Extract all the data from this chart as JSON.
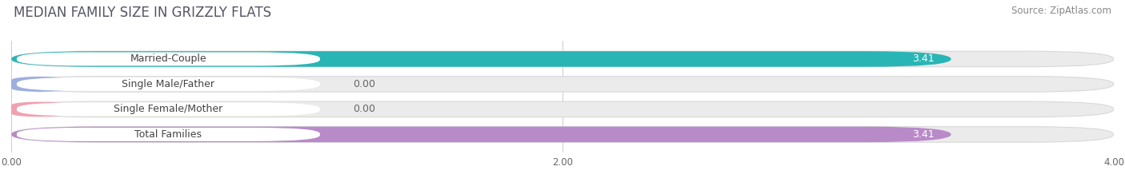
{
  "title": "MEDIAN FAMILY SIZE IN GRIZZLY FLATS",
  "source": "Source: ZipAtlas.com",
  "categories": [
    "Married-Couple",
    "Single Male/Father",
    "Single Female/Mother",
    "Total Families"
  ],
  "values": [
    3.41,
    0.0,
    0.0,
    3.41
  ],
  "bar_colors": [
    "#2ab5b5",
    "#9daee0",
    "#f2a0b0",
    "#b98ac8"
  ],
  "xlim": [
    0,
    4.0
  ],
  "xticks": [
    0.0,
    2.0,
    4.0
  ],
  "xtick_labels": [
    "0.00",
    "2.00",
    "4.00"
  ],
  "bar_height": 0.62,
  "background_color": "#ffffff",
  "bar_background_color": "#ebebeb",
  "title_fontsize": 12,
  "source_fontsize": 8.5,
  "label_fontsize": 9,
  "value_fontsize": 9
}
